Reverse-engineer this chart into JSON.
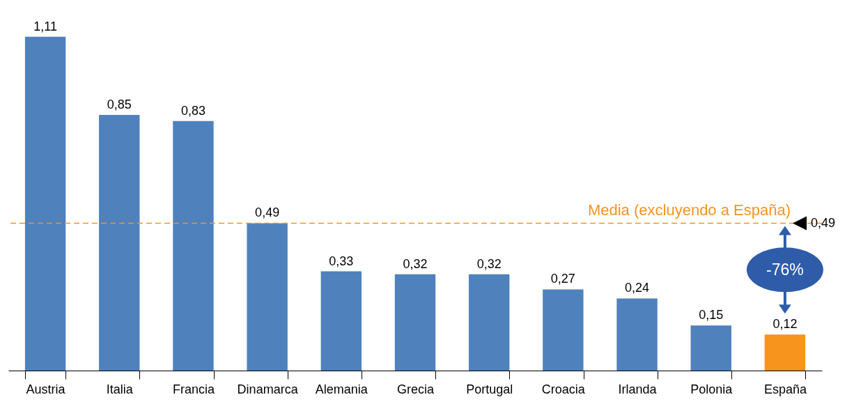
{
  "chart_data": {
    "type": "bar",
    "categories": [
      "Austria",
      "Italia",
      "Francia",
      "Dinamarca",
      "Alemania",
      "Grecia",
      "Portugal",
      "Croacia",
      "Irlanda",
      "Polonia",
      "España"
    ],
    "values": [
      1.11,
      0.85,
      0.83,
      0.49,
      0.33,
      0.32,
      0.32,
      0.27,
      0.24,
      0.15,
      0.12
    ],
    "colors": [
      "#4f81bd",
      "#4f81bd",
      "#4f81bd",
      "#4f81bd",
      "#4f81bd",
      "#4f81bd",
      "#4f81bd",
      "#4f81bd",
      "#4f81bd",
      "#4f81bd",
      "#f7941d"
    ],
    "value_labels": [
      "1,11",
      "0,85",
      "0,83",
      "0,49",
      "0,33",
      "0,32",
      "0,32",
      "0,27",
      "0,24",
      "0,15",
      "0,12"
    ],
    "ref_lines": [
      {
        "axis": "y",
        "value": 0.49,
        "label": "Media (excluyendo a España)",
        "color": "#f7941d",
        "line_style": "dashed"
      }
    ],
    "annotations": [
      {
        "text": "0,49",
        "y": 0.49
      },
      "-76%"
    ],
    "grid": false
  }
}
